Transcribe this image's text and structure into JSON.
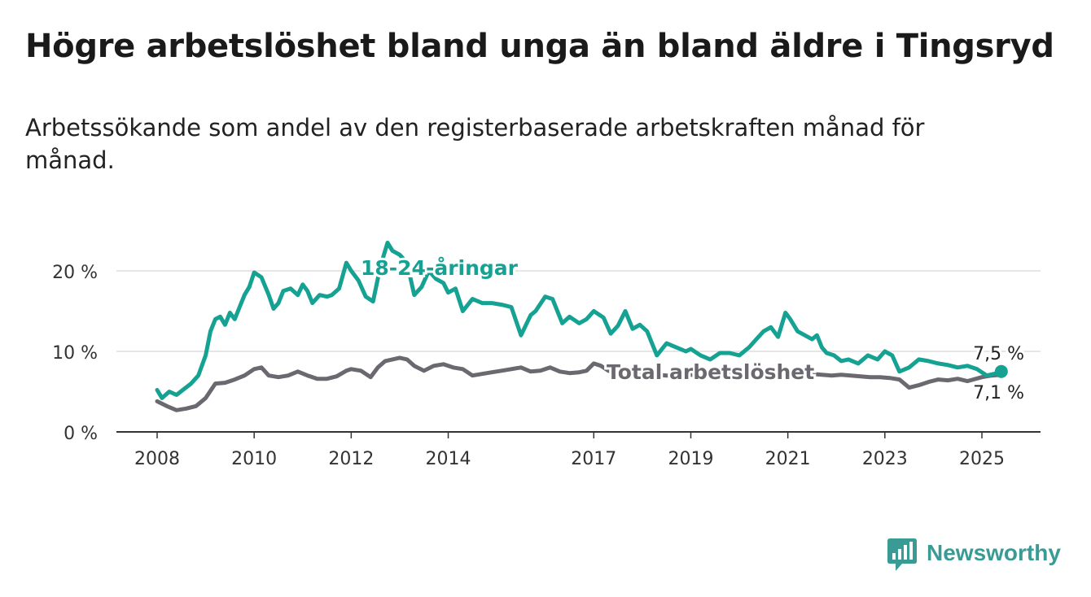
{
  "title": "Högre arbetslöshet bland unga än bland äldre i Tingsryd",
  "subtitle": "Arbetssökande som andel av den registerbaserade arbetskraften månad för månad.",
  "brand": "Newsworthy",
  "colors": {
    "youth": "#15a293",
    "total": "#6b6870",
    "grid": "#dddddd",
    "brand": "#3a9b95"
  },
  "chart_data": {
    "type": "line",
    "x_unit": "year",
    "ylim": [
      0,
      25
    ],
    "yticks": [
      0,
      10,
      20
    ],
    "ytick_labels": [
      "0 %",
      "10 %",
      "20 %"
    ],
    "xticks": [
      2008,
      2010,
      2012,
      2014,
      2017,
      2019,
      2021,
      2023,
      2025
    ],
    "xtick_labels": [
      "2008",
      "2010",
      "2012",
      "2014",
      "2017",
      "2019",
      "2021",
      "2023",
      "2025"
    ],
    "grid": true,
    "series": [
      {
        "name": "18-24-åringar",
        "end_label": "7,5 %",
        "x": [
          2008.0,
          2008.1,
          2008.25,
          2008.4,
          2008.55,
          2008.7,
          2008.85,
          2009.0,
          2009.1,
          2009.2,
          2009.3,
          2009.4,
          2009.5,
          2009.6,
          2009.7,
          2009.8,
          2009.9,
          2010.0,
          2010.15,
          2010.3,
          2010.4,
          2010.5,
          2010.6,
          2010.75,
          2010.9,
          2011.0,
          2011.1,
          2011.2,
          2011.35,
          2011.5,
          2011.6,
          2011.75,
          2011.9,
          2012.0,
          2012.15,
          2012.3,
          2012.45,
          2012.6,
          2012.75,
          2012.85,
          2013.0,
          2013.15,
          2013.3,
          2013.45,
          2013.6,
          2013.75,
          2013.9,
          2014.0,
          2014.15,
          2014.3,
          2014.5,
          2014.7,
          2014.9,
          2015.1,
          2015.3,
          2015.5,
          2015.7,
          2015.8,
          2016.0,
          2016.15,
          2016.35,
          2016.5,
          2016.7,
          2016.85,
          2017.0,
          2017.2,
          2017.35,
          2017.5,
          2017.65,
          2017.8,
          2017.95,
          2018.1,
          2018.3,
          2018.5,
          2018.7,
          2018.9,
          2019.0,
          2019.2,
          2019.4,
          2019.6,
          2019.8,
          2020.0,
          2020.2,
          2020.35,
          2020.5,
          2020.65,
          2020.8,
          2020.95,
          2021.05,
          2021.2,
          2021.35,
          2021.5,
          2021.6,
          2021.7,
          2021.8,
          2021.95,
          2022.1,
          2022.25,
          2022.45,
          2022.65,
          2022.85,
          2023.0,
          2023.15,
          2023.3,
          2023.5,
          2023.7,
          2023.9,
          2024.1,
          2024.3,
          2024.5,
          2024.7,
          2024.9,
          2025.1,
          2025.25,
          2025.4
        ],
        "values": [
          5.2,
          4.2,
          5.0,
          4.6,
          5.3,
          6.0,
          7.0,
          9.5,
          12.5,
          14.0,
          14.3,
          13.3,
          14.8,
          14.0,
          15.5,
          17.0,
          18.0,
          19.8,
          19.2,
          17.0,
          15.3,
          16.0,
          17.5,
          17.8,
          17.0,
          18.3,
          17.5,
          16.0,
          17.0,
          16.8,
          17.0,
          17.8,
          21.0,
          20.0,
          18.8,
          16.8,
          16.2,
          20.5,
          23.5,
          22.5,
          22.0,
          21.0,
          17.0,
          18.0,
          20.0,
          19.0,
          18.5,
          17.3,
          17.8,
          15.0,
          16.5,
          16.0,
          16.0,
          15.8,
          15.5,
          12.0,
          14.5,
          15.0,
          16.8,
          16.5,
          13.5,
          14.3,
          13.5,
          14.0,
          15.0,
          14.2,
          12.2,
          13.2,
          15.0,
          12.8,
          13.3,
          12.5,
          9.5,
          11.0,
          10.5,
          10.0,
          10.3,
          9.5,
          9.0,
          9.8,
          9.8,
          9.5,
          10.5,
          11.5,
          12.5,
          13.0,
          11.8,
          14.8,
          14.0,
          12.5,
          12.0,
          11.5,
          12.0,
          10.5,
          9.8,
          9.5,
          8.8,
          9.0,
          8.5,
          9.5,
          9.0,
          10.0,
          9.5,
          7.5,
          8.0,
          9.0,
          8.8,
          8.5,
          8.3,
          8.0,
          8.2,
          7.8,
          7.0,
          7.2,
          7.5
        ]
      },
      {
        "name": "Total arbetslöshet",
        "end_label": "7,1 %",
        "x": [
          2008.0,
          2008.2,
          2008.4,
          2008.6,
          2008.8,
          2009.0,
          2009.2,
          2009.4,
          2009.6,
          2009.8,
          2010.0,
          2010.15,
          2010.3,
          2010.5,
          2010.7,
          2010.9,
          2011.1,
          2011.3,
          2011.5,
          2011.7,
          2011.9,
          2012.0,
          2012.2,
          2012.4,
          2012.55,
          2012.7,
          2012.85,
          2013.0,
          2013.15,
          2013.3,
          2013.5,
          2013.7,
          2013.9,
          2014.1,
          2014.3,
          2014.5,
          2014.7,
          2014.9,
          2015.1,
          2015.3,
          2015.5,
          2015.7,
          2015.9,
          2016.1,
          2016.3,
          2016.5,
          2016.7,
          2016.85,
          2017.0,
          2017.15,
          2017.3,
          2017.5,
          2017.7,
          2017.9,
          2018.1,
          2018.3,
          2018.5,
          2018.7,
          2018.9,
          2019.1,
          2019.3,
          2019.5,
          2019.7,
          2019.9,
          2020.1,
          2020.3,
          2020.5,
          2020.7,
          2020.9,
          2021.1,
          2021.3,
          2021.5,
          2021.7,
          2021.9,
          2022.1,
          2022.3,
          2022.5,
          2022.7,
          2022.9,
          2023.1,
          2023.3,
          2023.5,
          2023.7,
          2023.9,
          2024.1,
          2024.3,
          2024.5,
          2024.7,
          2025.0,
          2025.2,
          2025.4
        ],
        "values": [
          3.8,
          3.2,
          2.7,
          2.9,
          3.2,
          4.2,
          6.0,
          6.1,
          6.5,
          7.0,
          7.8,
          8.0,
          7.0,
          6.8,
          7.0,
          7.5,
          7.0,
          6.6,
          6.6,
          6.9,
          7.6,
          7.8,
          7.6,
          6.8,
          8.0,
          8.8,
          9.0,
          9.2,
          9.0,
          8.2,
          7.6,
          8.2,
          8.4,
          8.0,
          7.8,
          7.0,
          7.2,
          7.4,
          7.6,
          7.8,
          8.0,
          7.5,
          7.6,
          8.0,
          7.5,
          7.3,
          7.4,
          7.6,
          8.5,
          8.2,
          7.6,
          7.3,
          7.2,
          7.0,
          7.2,
          7.1,
          7.0,
          7.0,
          7.2,
          7.0,
          6.9,
          7.0,
          7.3,
          7.2,
          7.1,
          7.0,
          7.4,
          7.3,
          7.2,
          7.5,
          7.3,
          7.2,
          7.1,
          7.0,
          7.1,
          7.0,
          6.9,
          6.8,
          6.8,
          6.7,
          6.5,
          5.5,
          5.8,
          6.2,
          6.5,
          6.4,
          6.6,
          6.3,
          6.8,
          7.0,
          7.1
        ]
      }
    ]
  }
}
